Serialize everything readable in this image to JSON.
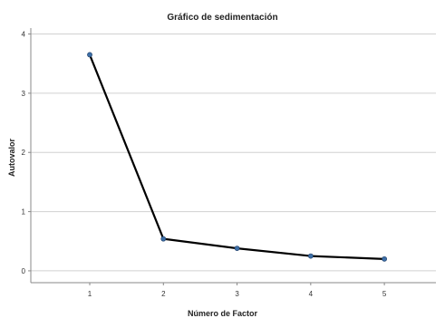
{
  "chart_data": {
    "type": "line",
    "title": "Gráfico de sedimentación",
    "xlabel": "Número de Factor",
    "ylabel": "Autovalor",
    "x": [
      1,
      2,
      3,
      4,
      5
    ],
    "series": [
      {
        "values": [
          3.65,
          0.54,
          0.38,
          0.25,
          0.2
        ]
      }
    ],
    "xticks": [
      1,
      2,
      3,
      4,
      5
    ],
    "yticks": [
      0,
      1,
      2,
      3,
      4
    ],
    "xlim": [
      0.2,
      5.7
    ],
    "ylim": [
      -0.2,
      4.1
    ],
    "grid": "horizontal",
    "line_color": "#000000",
    "marker_color": "#3d6fa7",
    "grid_color": "#d0d0d0"
  }
}
